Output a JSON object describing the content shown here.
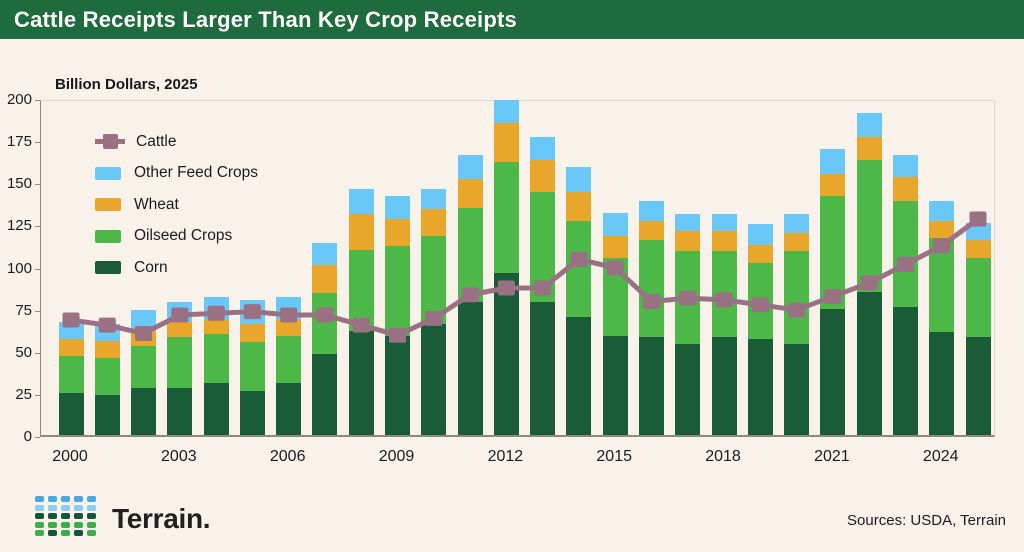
{
  "header": {
    "title": "Cattle Receipts Larger Than Key Crop Receipts"
  },
  "footer": {
    "brand": "Terrain.",
    "sources": "Sources: USDA, Terrain"
  },
  "colors": {
    "header_bg": "#1e6b3d",
    "page_bg": "#f8f2ea",
    "corn": "#1a5c38",
    "oilseed": "#4cb848",
    "wheat": "#e8a62a",
    "other_feed": "#69c8f7",
    "cattle": "#9a7183",
    "logo_blue": "#4aa7e0",
    "logo_light_blue": "#8ecdf2",
    "logo_dark_green": "#14543a",
    "logo_green": "#3fae4a"
  },
  "chart_data": {
    "type": "bar",
    "subtype": "stacked-bars-with-line",
    "title": "Cattle Receipts Larger Than Key Crop Receipts",
    "subtitle": "Billion Dollars, 2025",
    "ylabel": "Billion Dollars (2025)",
    "ylim": [
      0,
      200
    ],
    "y_ticks": [
      0,
      25,
      50,
      75,
      100,
      125,
      150,
      175,
      200
    ],
    "x": [
      2000,
      2001,
      2002,
      2003,
      2004,
      2005,
      2006,
      2007,
      2008,
      2009,
      2010,
      2011,
      2012,
      2013,
      2014,
      2015,
      2016,
      2017,
      2018,
      2019,
      2020,
      2021,
      2022,
      2023,
      2024,
      2025
    ],
    "x_tick_labels": [
      "2000",
      "2003",
      "2006",
      "2009",
      "2012",
      "2015",
      "2018",
      "2021",
      "2024"
    ],
    "grid": false,
    "legend_position": "inside top-left",
    "stacked_series": [
      {
        "name": "Corn",
        "values": [
          25,
          24,
          28,
          28,
          31,
          26,
          31,
          48,
          62,
          59,
          66,
          79,
          96,
          79,
          70,
          59,
          58,
          54,
          58,
          57,
          54,
          75,
          85,
          76,
          61,
          58
        ]
      },
      {
        "name": "Oilseed Crops",
        "values": [
          22,
          22,
          25,
          30,
          29,
          29,
          28,
          36,
          48,
          53,
          52,
          56,
          66,
          65,
          57,
          46,
          58,
          55,
          51,
          45,
          55,
          67,
          78,
          63,
          56,
          47
        ]
      },
      {
        "name": "Wheat",
        "values": [
          10,
          10,
          9,
          9,
          8,
          11,
          9,
          17,
          21,
          16,
          16,
          17,
          23,
          19,
          17,
          13,
          11,
          12,
          12,
          11,
          11,
          13,
          14,
          14,
          10,
          11
        ]
      },
      {
        "name": "Other Feed Crops",
        "values": [
          10,
          10,
          12,
          12,
          14,
          14,
          14,
          13,
          15,
          14,
          12,
          14,
          14,
          14,
          15,
          14,
          12,
          10,
          10,
          12,
          11,
          15,
          14,
          13,
          12,
          10
        ]
      }
    ],
    "line_series": {
      "name": "Cattle",
      "values": [
        70,
        67,
        62,
        73,
        74,
        75,
        73,
        73,
        67,
        61,
        71,
        85,
        89,
        89,
        106,
        101,
        81,
        83,
        82,
        79,
        76,
        84,
        92,
        103,
        114,
        130
      ]
    },
    "legend": [
      {
        "label": "Cattle",
        "type": "line-marker",
        "color_key": "cattle"
      },
      {
        "label": "Other Feed Crops",
        "type": "rect",
        "color_key": "other_feed"
      },
      {
        "label": "Wheat",
        "type": "rect",
        "color_key": "wheat"
      },
      {
        "label": "Oilseed Crops",
        "type": "rect",
        "color_key": "oilseed"
      },
      {
        "label": "Corn",
        "type": "rect",
        "color_key": "corn"
      }
    ]
  }
}
